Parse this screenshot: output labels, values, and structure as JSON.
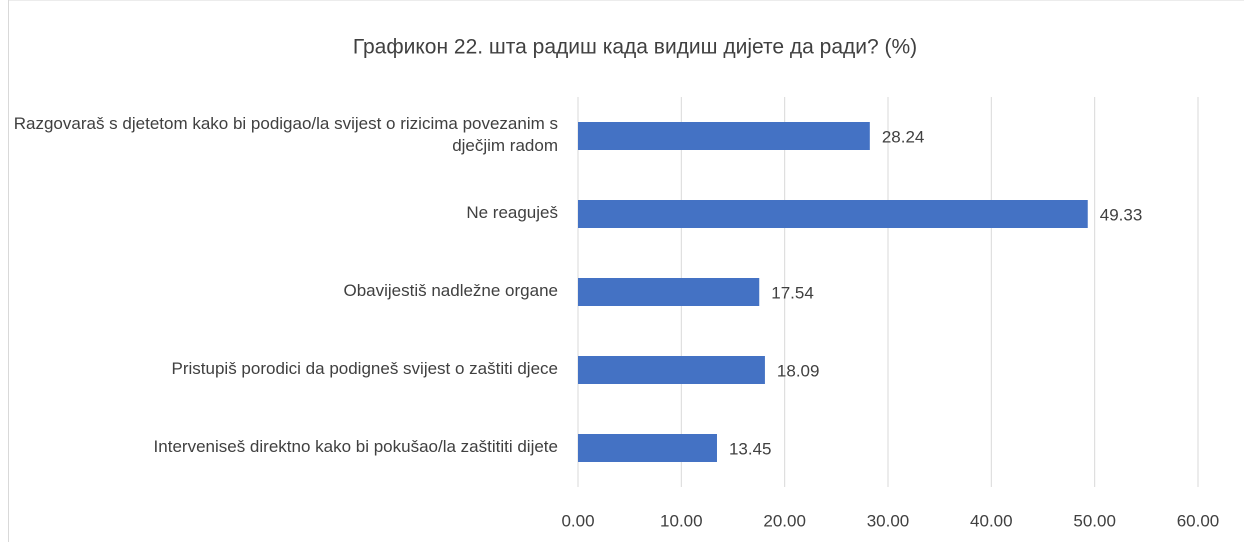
{
  "chart_data": {
    "type": "bar",
    "orientation": "horizontal",
    "title": "Графикон 22. шта радиш када видиш дијете да ради? (%)",
    "categories": [
      "Razgovaraš s djetetom kako bi podigao/la svijest o rizicima povezanim s dječjim radom",
      "Ne reaguješ",
      "Obavijestiš nadležne organe",
      "Pristupiš porodici da podigneš svijest o zaštiti djece",
      "Interveniseš direktno kako bi pokušao/la zaštititi dijete"
    ],
    "values": [
      28.24,
      49.33,
      17.54,
      18.09,
      13.45
    ],
    "color": "#4472c4",
    "xlim": [
      0,
      60
    ],
    "xticks": [
      {
        "value": 0,
        "label": "0.00"
      },
      {
        "value": 10,
        "label": "10.00"
      },
      {
        "value": 20,
        "label": "20.00"
      },
      {
        "value": 30,
        "label": "30.00"
      },
      {
        "value": 40,
        "label": "40.00"
      },
      {
        "value": 50,
        "label": "50.00"
      },
      {
        "value": 60,
        "label": "60.00"
      }
    ],
    "grid": true
  }
}
